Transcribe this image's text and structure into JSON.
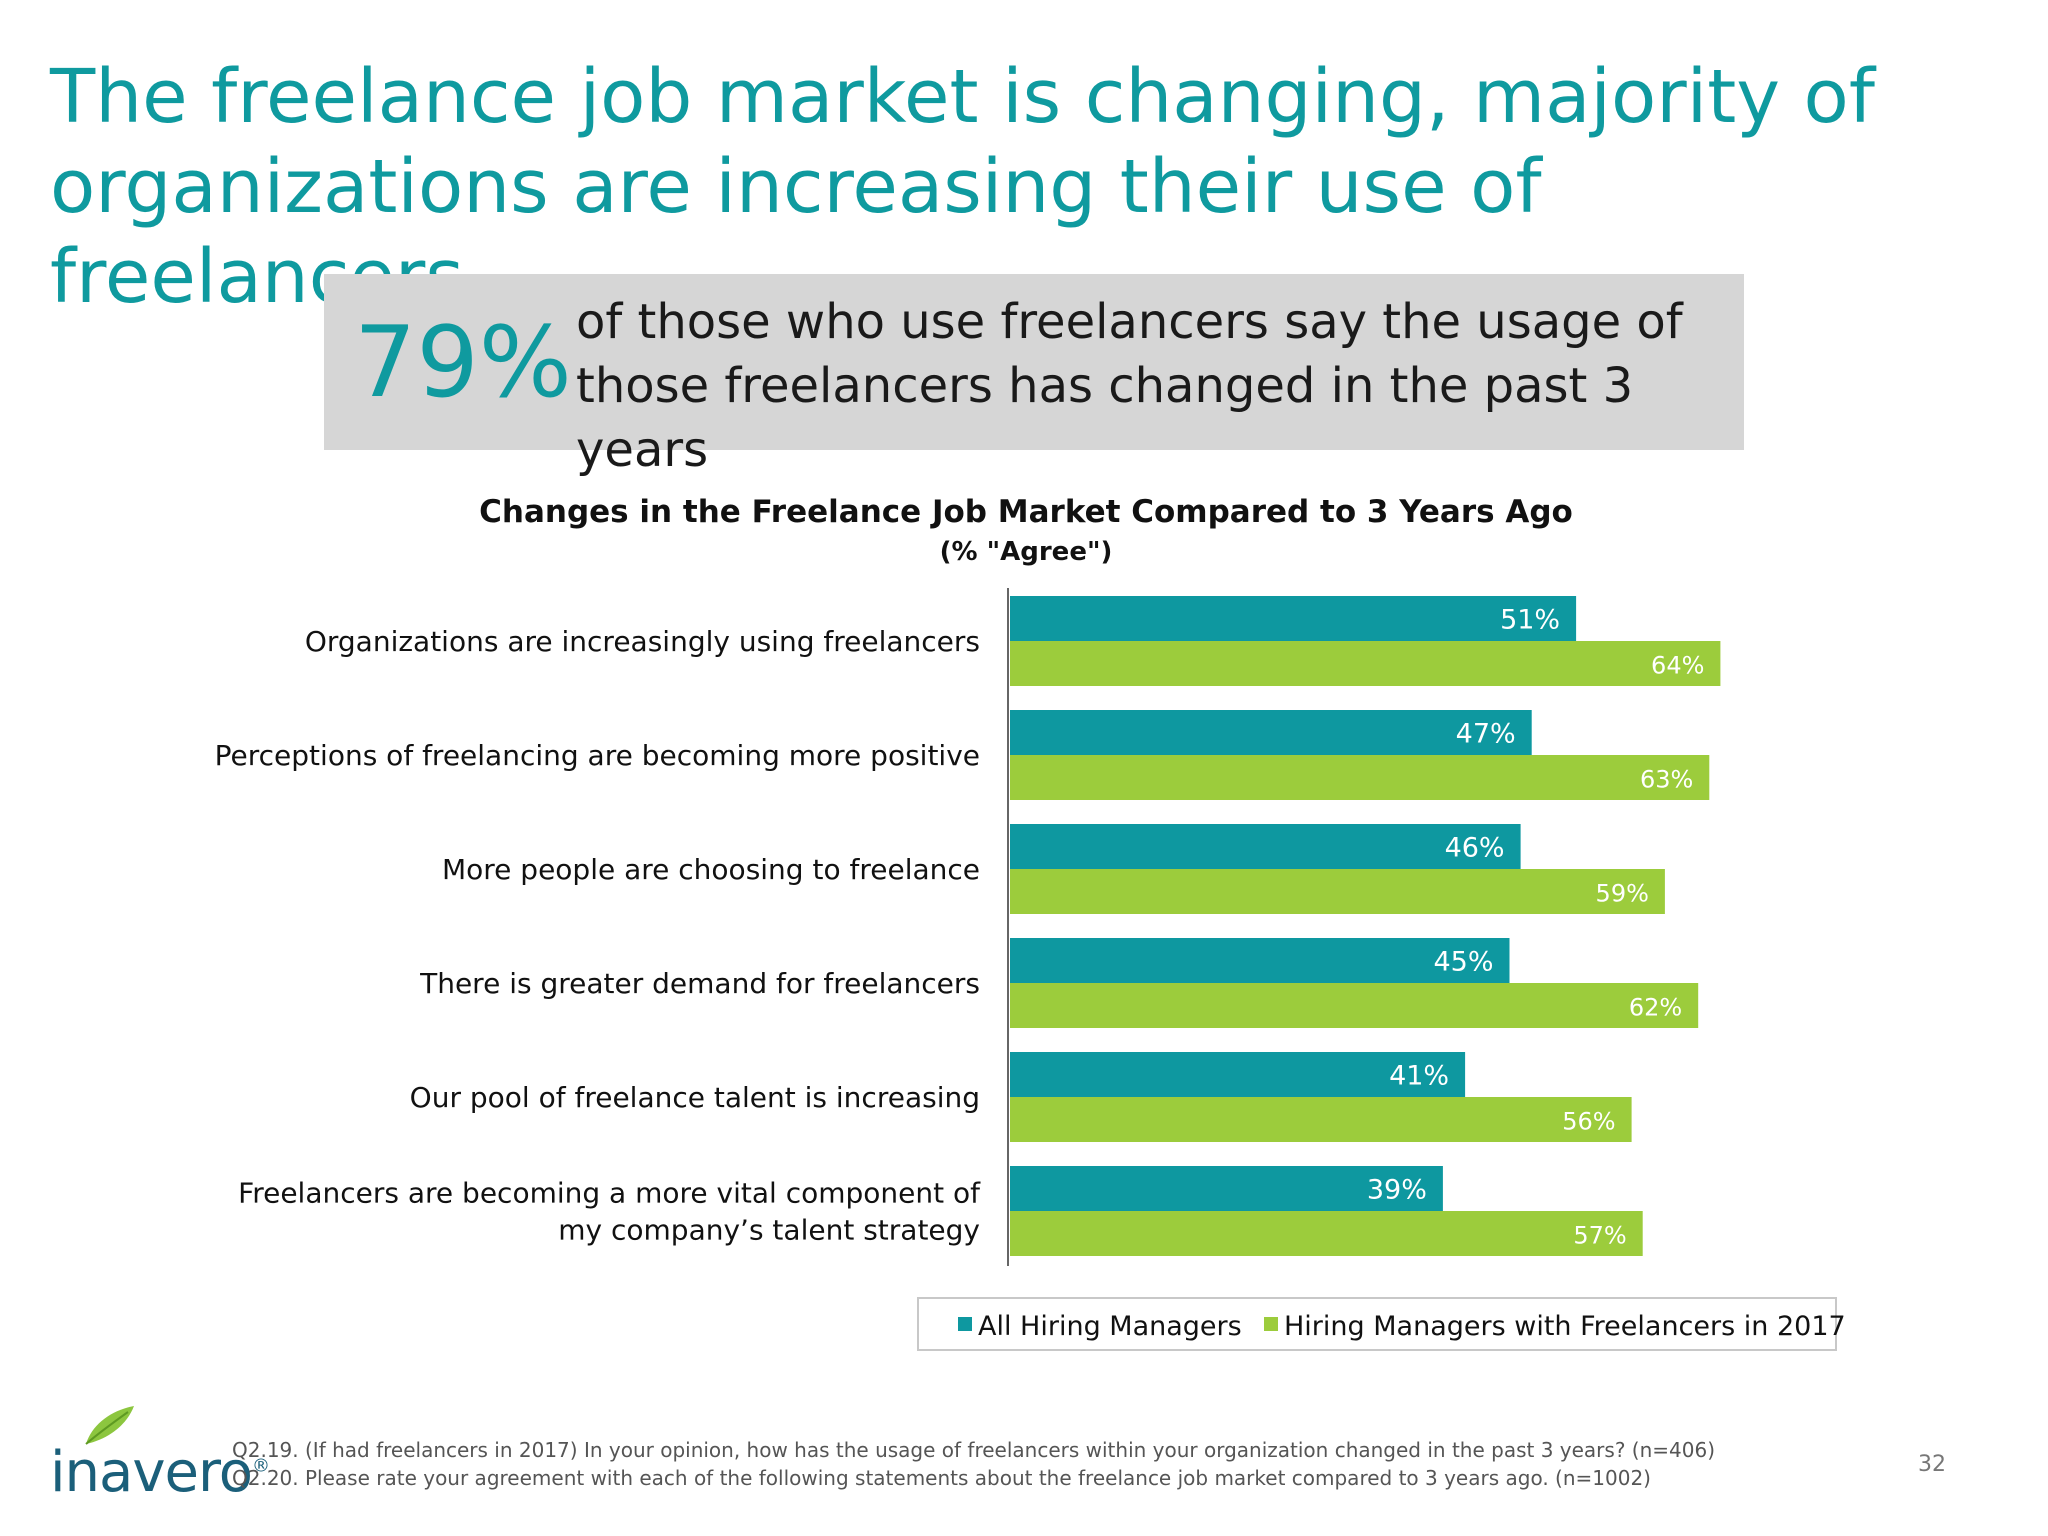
{
  "title": "The freelance job market is changing, majority of organizations are increasing their use of freelancers",
  "callout": {
    "stat": "79%",
    "text": "of those who use freelancers say the usage of those freelancers has changed in the past 3 years"
  },
  "chart_data": {
    "type": "bar",
    "orientation": "horizontal",
    "title": "Changes in the Freelance Job Market Compared to 3 Years Ago",
    "subtitle": "(% \"Agree\")",
    "categories": [
      [
        "Organizations are increasingly using freelancers"
      ],
      [
        "Perceptions of freelancing are becoming more positive"
      ],
      [
        "More people are choosing to freelance"
      ],
      [
        "There is greater demand for freelancers"
      ],
      [
        "Our pool of freelance talent is increasing"
      ],
      [
        "Freelancers are becoming a more vital component of",
        "my company’s talent strategy"
      ]
    ],
    "series": [
      {
        "name": "All Hiring Managers",
        "values": [
          51,
          47,
          46,
          45,
          41,
          39
        ],
        "color": "#0e98a0"
      },
      {
        "name": "Hiring Managers with Freelancers in 2017",
        "values": [
          64,
          63,
          59,
          62,
          56,
          57
        ],
        "color": "#9ccc3c"
      }
    ],
    "value_suffix": "%",
    "legend_position": "bottom-right",
    "grid": false
  },
  "footnotes": [
    "Q2.19. (If had freelancers in 2017) In your opinion, how has the usage of freelancers within your organization changed in the past 3 years? (n=406)",
    "Q2.20. Please rate your agreement with each of the following statements about the freelance job market compared to 3 years ago. (n=1002)"
  ],
  "logo": {
    "text": "inavero",
    "registered": "®"
  },
  "page_number": "32",
  "colors": {
    "title": "#0f9a9f",
    "callout_bg": "#d6d6d6"
  }
}
